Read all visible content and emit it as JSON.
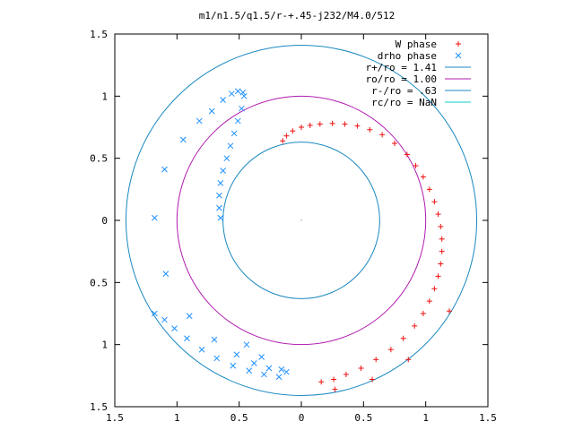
{
  "chart_data": {
    "type": "scatter",
    "title": "m1/n1.5/q1.5/r-+.45-j232/M4.0/512",
    "xlabel": "",
    "ylabel": "",
    "xlim": [
      -1.5,
      1.5
    ],
    "ylim": [
      -1.5,
      1.5
    ],
    "x_ticks": [
      {
        "v": -1.5,
        "label": "1.5"
      },
      {
        "v": -1,
        "label": "1"
      },
      {
        "v": -0.5,
        "label": "0.5"
      },
      {
        "v": 0,
        "label": "0"
      },
      {
        "v": 0.5,
        "label": "0.5"
      },
      {
        "v": 1,
        "label": "1"
      },
      {
        "v": 1.5,
        "label": "1.5"
      }
    ],
    "y_ticks": [
      {
        "v": 1.5,
        "label": "1.5"
      },
      {
        "v": 1,
        "label": "1"
      },
      {
        "v": 0.5,
        "label": "0.5"
      },
      {
        "v": 0,
        "label": "0"
      },
      {
        "v": -0.5,
        "label": "0.5"
      },
      {
        "v": -1,
        "label": "1"
      },
      {
        "v": -1.5,
        "label": "1.5"
      }
    ],
    "grid": false,
    "legend_position": "top-right",
    "circles": [
      {
        "name": "r+/ro = 1.41",
        "radius": 1.41,
        "color": "#1a88c0"
      },
      {
        "name": "ro/ro = 1.00",
        "radius": 1.0,
        "color": "#b01bb0"
      },
      {
        "name": "r-/ro = .63",
        "radius": 0.63,
        "color": "#1a88c0"
      },
      {
        "name": "rc/ro = NaN",
        "radius": null,
        "color": "#11cccc"
      }
    ],
    "series": [
      {
        "name": "W phase",
        "marker": "plus",
        "color": "#ee1111",
        "points": [
          [
            -0.15,
            0.64
          ],
          [
            -0.12,
            0.68
          ],
          [
            -0.07,
            0.72
          ],
          [
            0.0,
            0.75
          ],
          [
            0.07,
            0.765
          ],
          [
            0.15,
            0.775
          ],
          [
            0.25,
            0.78
          ],
          [
            0.35,
            0.775
          ],
          [
            0.45,
            0.76
          ],
          [
            0.55,
            0.73
          ],
          [
            0.65,
            0.69
          ],
          [
            0.75,
            0.62
          ],
          [
            0.85,
            0.53
          ],
          [
            0.92,
            0.44
          ],
          [
            0.98,
            0.35
          ],
          [
            1.03,
            0.25
          ],
          [
            1.07,
            0.15
          ],
          [
            1.1,
            0.05
          ],
          [
            1.12,
            -0.05
          ],
          [
            1.13,
            -0.15
          ],
          [
            1.13,
            -0.25
          ],
          [
            1.12,
            -0.35
          ],
          [
            1.1,
            -0.45
          ],
          [
            1.07,
            -0.55
          ],
          [
            1.03,
            -0.65
          ],
          [
            0.98,
            -0.75
          ],
          [
            0.91,
            -0.85
          ],
          [
            0.82,
            -0.95
          ],
          [
            0.72,
            -1.04
          ],
          [
            0.6,
            -1.12
          ],
          [
            0.48,
            -1.19
          ],
          [
            0.36,
            -1.24
          ],
          [
            0.26,
            -1.28
          ],
          [
            0.16,
            -1.3
          ],
          [
            1.19,
            -0.73
          ],
          [
            0.86,
            -1.12
          ],
          [
            0.57,
            -1.28
          ],
          [
            0.27,
            -1.36
          ]
        ]
      },
      {
        "name": "drho phase",
        "marker": "cross",
        "color": "#1e90ff",
        "points": [
          [
            -0.65,
            0.02
          ],
          [
            -0.66,
            0.1
          ],
          [
            -0.66,
            0.2
          ],
          [
            -0.65,
            0.3
          ],
          [
            -0.63,
            0.4
          ],
          [
            -0.6,
            0.5
          ],
          [
            -0.57,
            0.6
          ],
          [
            -0.54,
            0.7
          ],
          [
            -0.51,
            0.8
          ],
          [
            -0.48,
            0.9
          ],
          [
            -0.46,
            1.0
          ],
          [
            -0.47,
            1.03
          ],
          [
            -0.51,
            1.04
          ],
          [
            -0.56,
            1.02
          ],
          [
            -0.63,
            0.97
          ],
          [
            -0.72,
            0.88
          ],
          [
            -0.82,
            0.8
          ],
          [
            -0.95,
            0.65
          ],
          [
            -1.1,
            0.41
          ],
          [
            -1.18,
            0.02
          ],
          [
            -1.09,
            -0.43
          ],
          [
            -0.9,
            -0.77
          ],
          [
            -0.7,
            -0.96
          ],
          [
            -0.52,
            -1.08
          ],
          [
            -0.38,
            -1.15
          ],
          [
            -0.26,
            -1.19
          ],
          [
            -0.16,
            -1.2
          ],
          [
            -0.12,
            -1.22
          ],
          [
            -0.18,
            -1.26
          ],
          [
            -0.3,
            -1.24
          ],
          [
            -0.42,
            -1.21
          ],
          [
            -0.55,
            -1.17
          ],
          [
            -0.68,
            -1.11
          ],
          [
            -0.8,
            -1.04
          ],
          [
            -0.92,
            -0.95
          ],
          [
            -1.02,
            -0.87
          ],
          [
            -1.1,
            -0.8
          ],
          [
            -1.18,
            -0.75
          ],
          [
            -0.44,
            -1.0
          ],
          [
            -0.32,
            -1.1
          ]
        ]
      }
    ]
  }
}
